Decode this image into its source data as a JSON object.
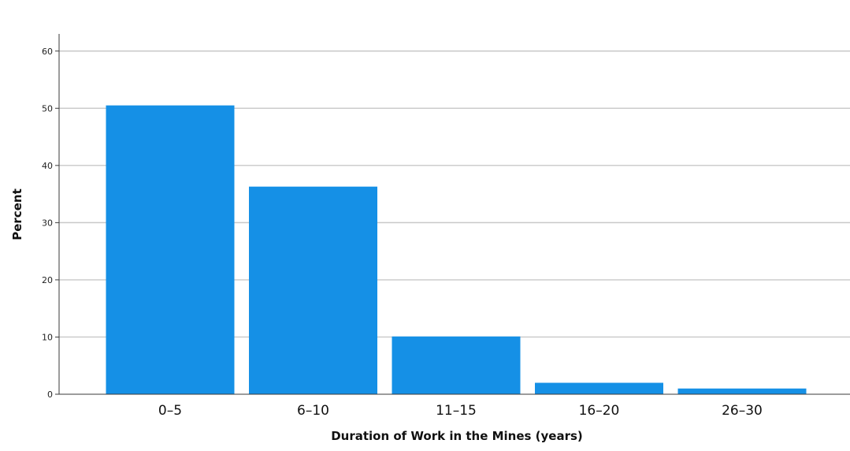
{
  "chart_data": {
    "type": "bar",
    "categories": [
      "0–5",
      "6–10",
      "11–15",
      "16–20",
      "26–30"
    ],
    "values": [
      50.5,
      36.3,
      10.1,
      2.0,
      1.0
    ],
    "xlabel": "Duration of Work in the Mines (years)",
    "ylabel": "Percent",
    "ylim": [
      0,
      63
    ],
    "yticks": [
      0,
      10,
      20,
      30,
      40,
      50,
      60
    ],
    "grid": true,
    "bar_color": "#1590e6"
  }
}
